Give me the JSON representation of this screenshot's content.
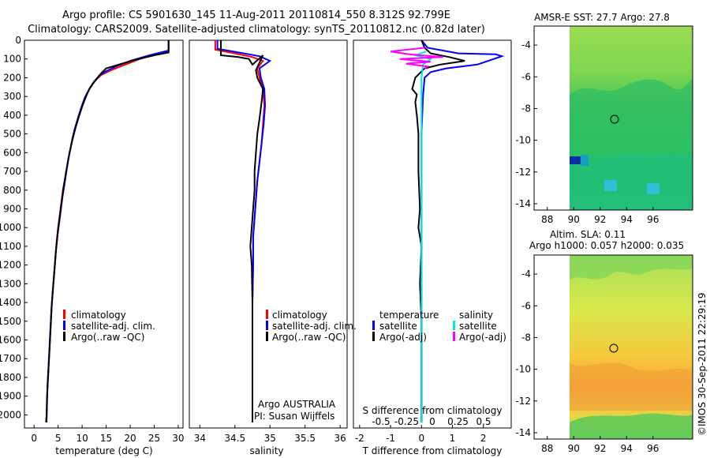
{
  "header": {
    "line1": "Argo profile: CS 5901630_145 11-Aug-2011 20110814_550 8.312S 92.799E",
    "line2": "Climatology: CARS2009. Satellite-adjusted climatology: synTS_20110812.nc (0.82d later)"
  },
  "footer": {
    "stamp": "©IMOS 30-Sep-2011 22:29:19"
  },
  "colors": {
    "climatology": "#ff0000",
    "satellite": "#0000ff",
    "argo": "#000000",
    "salinity_satellite": "#00e5e5",
    "salinity_argo": "#ff00ff"
  },
  "chart_data": [
    {
      "type": "line",
      "name": "temperature-profile",
      "xlabel": "temperature (deg C)",
      "ylabel": "",
      "xlim": [
        -2,
        31
      ],
      "ylim": [
        0,
        2070
      ],
      "y_reversed": true,
      "xticks": [
        0,
        5,
        10,
        15,
        20,
        25,
        30
      ],
      "yticks": [
        0,
        100,
        200,
        300,
        400,
        500,
        600,
        700,
        800,
        900,
        1000,
        1100,
        1200,
        1300,
        1400,
        1500,
        1600,
        1700,
        1800,
        1900,
        2000
      ],
      "legend": [
        "climatology",
        "satellite-adj. clim.",
        "Argo(..raw -QC)"
      ],
      "series": [
        {
          "name": "climatology",
          "color": "red",
          "points": [
            [
              28,
              0
            ],
            [
              28,
              60
            ],
            [
              25,
              75
            ],
            [
              22,
              100
            ],
            [
              19,
              130
            ],
            [
              16,
              160
            ],
            [
              14,
              185
            ],
            [
              12.5,
              220
            ],
            [
              11.5,
              260
            ],
            [
              10.7,
              300
            ],
            [
              10,
              350
            ],
            [
              9.3,
              400
            ],
            [
              8.6,
              460
            ],
            [
              8,
              520
            ],
            [
              7.4,
              600
            ],
            [
              6.7,
              700
            ],
            [
              6,
              800
            ],
            [
              5.5,
              900
            ],
            [
              5,
              1000
            ],
            [
              4.6,
              1100
            ],
            [
              4.3,
              1200
            ],
            [
              4,
              1300
            ],
            [
              3.7,
              1400
            ],
            [
              3.5,
              1500
            ],
            [
              3.3,
              1600
            ],
            [
              3.1,
              1700
            ],
            [
              2.9,
              1800
            ],
            [
              2.7,
              1900
            ],
            [
              2.6,
              2000
            ],
            [
              2.5,
              2040
            ]
          ]
        },
        {
          "name": "satellite-adj. clim.",
          "color": "blue",
          "points": [
            [
              28,
              0
            ],
            [
              28,
              55
            ],
            [
              24,
              80
            ],
            [
              20,
              110
            ],
            [
              17,
              140
            ],
            [
              15,
              165
            ],
            [
              13.5,
              190
            ],
            [
              12.3,
              230
            ],
            [
              11.3,
              270
            ],
            [
              10.5,
              310
            ],
            [
              9.8,
              360
            ],
            [
              9.1,
              420
            ],
            [
              8.4,
              480
            ],
            [
              7.8,
              550
            ],
            [
              7.1,
              640
            ],
            [
              6.5,
              740
            ],
            [
              5.9,
              840
            ],
            [
              5.4,
              940
            ],
            [
              4.9,
              1040
            ],
            [
              4.5,
              1140
            ],
            [
              4.2,
              1240
            ],
            [
              3.9,
              1340
            ],
            [
              3.6,
              1440
            ],
            [
              3.4,
              1540
            ],
            [
              3.2,
              1640
            ],
            [
              3,
              1740
            ],
            [
              2.8,
              1840
            ],
            [
              2.7,
              1940
            ],
            [
              2.6,
              2040
            ]
          ]
        },
        {
          "name": "Argo(..raw -QC)",
          "color": "black",
          "points": [
            [
              28,
              0
            ],
            [
              28,
              65
            ],
            [
              25,
              80
            ],
            [
              21,
              105
            ],
            [
              17,
              135
            ],
            [
              15,
              150
            ],
            [
              14,
              175
            ],
            [
              12.7,
              215
            ],
            [
              11.6,
              255
            ],
            [
              10.8,
              300
            ],
            [
              10,
              355
            ],
            [
              9.3,
              410
            ],
            [
              8.6,
              470
            ],
            [
              8,
              530
            ],
            [
              7.3,
              610
            ],
            [
              6.6,
              710
            ],
            [
              6,
              810
            ],
            [
              5.5,
              910
            ],
            [
              5,
              1010
            ],
            [
              4.6,
              1110
            ],
            [
              4.3,
              1210
            ],
            [
              4,
              1310
            ],
            [
              3.7,
              1410
            ],
            [
              3.5,
              1510
            ],
            [
              3.3,
              1610
            ],
            [
              3.1,
              1710
            ],
            [
              2.9,
              1810
            ],
            [
              2.7,
              1910
            ],
            [
              2.6,
              2010
            ],
            [
              2.5,
              2040
            ]
          ]
        }
      ]
    },
    {
      "type": "line",
      "name": "salinity-profile",
      "xlabel": "salinity",
      "xlim": [
        33.85,
        36.1
      ],
      "ylim": [
        0,
        2070
      ],
      "y_reversed": true,
      "xticks": [
        34,
        34.5,
        35,
        35.5,
        36
      ],
      "legend": [
        "climatology",
        "satellite-adj. clim.",
        "Argo(..raw -QC)"
      ],
      "annotation_lines": [
        "Argo AUSTRALIA",
        "PI: Susan Wijffels"
      ],
      "series": [
        {
          "name": "climatology",
          "color": "red",
          "points": [
            [
              34.22,
              0
            ],
            [
              34.22,
              50
            ],
            [
              34.5,
              70
            ],
            [
              34.75,
              90
            ],
            [
              34.9,
              110
            ],
            [
              34.82,
              150
            ],
            [
              34.85,
              200
            ],
            [
              34.9,
              260
            ],
            [
              34.92,
              350
            ],
            [
              34.9,
              450
            ],
            [
              34.88,
              550
            ],
            [
              34.85,
              650
            ],
            [
              34.82,
              750
            ],
            [
              34.8,
              850
            ],
            [
              34.78,
              950
            ],
            [
              34.76,
              1050
            ],
            [
              34.76,
              1200
            ],
            [
              34.75,
              1400
            ],
            [
              34.75,
              1600
            ],
            [
              34.75,
              1800
            ],
            [
              34.75,
              2040
            ]
          ]
        },
        {
          "name": "satellite-adj. clim.",
          "color": "blue",
          "points": [
            [
              34.25,
              0
            ],
            [
              34.25,
              45
            ],
            [
              34.55,
              65
            ],
            [
              34.85,
              85
            ],
            [
              35.0,
              110
            ],
            [
              34.85,
              150
            ],
            [
              34.87,
              200
            ],
            [
              34.92,
              260
            ],
            [
              34.93,
              350
            ],
            [
              34.91,
              450
            ],
            [
              34.88,
              550
            ],
            [
              34.85,
              650
            ],
            [
              34.82,
              750
            ],
            [
              34.8,
              850
            ],
            [
              34.78,
              950
            ],
            [
              34.76,
              1050
            ],
            [
              34.76,
              1200
            ],
            [
              34.75,
              1400
            ],
            [
              34.75,
              1600
            ],
            [
              34.75,
              1800
            ],
            [
              34.75,
              2040
            ]
          ]
        },
        {
          "name": "Argo(..raw -QC)",
          "color": "black",
          "points": [
            [
              34.3,
              0
            ],
            [
              34.3,
              80
            ],
            [
              34.55,
              90
            ],
            [
              34.7,
              100
            ],
            [
              34.75,
              130
            ],
            [
              34.9,
              80
            ],
            [
              34.8,
              160
            ],
            [
              34.82,
              200
            ],
            [
              34.9,
              260
            ],
            [
              34.88,
              330
            ],
            [
              34.85,
              420
            ],
            [
              34.82,
              500
            ],
            [
              34.8,
              600
            ],
            [
              34.78,
              700
            ],
            [
              34.78,
              800
            ],
            [
              34.76,
              900
            ],
            [
              34.74,
              1000
            ],
            [
              34.72,
              1100
            ],
            [
              34.74,
              1200
            ],
            [
              34.75,
              1400
            ],
            [
              34.75,
              1600
            ],
            [
              34.75,
              1800
            ],
            [
              34.75,
              2040
            ]
          ]
        }
      ]
    },
    {
      "type": "line",
      "name": "difference-profile",
      "xlabel": "T difference from climatology",
      "xlabel_top": "S difference from climatology",
      "xlim": [
        -2.2,
        2.9
      ],
      "ylim": [
        0,
        2070
      ],
      "y_reversed": true,
      "xticks": [
        -2,
        -1,
        0,
        1,
        2
      ],
      "xticks_top": [
        -0.5,
        -0.25,
        0,
        0.25,
        0.5
      ],
      "legend_headers": [
        "temperature",
        "salinity"
      ],
      "legend": [
        "satellite",
        "Argo(-adj)",
        "satellite",
        "Argo(-adj)"
      ],
      "series": [
        {
          "name": "satellite",
          "color": "blue",
          "points": [
            [
              0,
              0
            ],
            [
              0.2,
              40
            ],
            [
              1.2,
              70
            ],
            [
              2.4,
              75
            ],
            [
              2.6,
              85
            ],
            [
              1.8,
              130
            ],
            [
              0.8,
              150
            ],
            [
              0.3,
              170
            ],
            [
              0.1,
              200
            ],
            [
              0.05,
              300
            ],
            [
              0.0,
              500
            ],
            [
              0.0,
              800
            ],
            [
              0.0,
              1200
            ],
            [
              0.0,
              1600
            ],
            [
              0.0,
              2040
            ]
          ]
        },
        {
          "name": "Argo(-adj)",
          "color": "black",
          "points": [
            [
              0,
              0
            ],
            [
              0.1,
              40
            ],
            [
              0.3,
              70
            ],
            [
              0.9,
              90
            ],
            [
              1.4,
              110
            ],
            [
              0.6,
              130
            ],
            [
              0.1,
              150
            ],
            [
              -0.2,
              200
            ],
            [
              -0.3,
              260
            ],
            [
              -0.15,
              290
            ],
            [
              -0.2,
              330
            ],
            [
              -0.15,
              400
            ],
            [
              -0.1,
              500
            ],
            [
              -0.1,
              700
            ],
            [
              -0.05,
              900
            ],
            [
              -0.1,
              1000
            ],
            [
              0.0,
              1100
            ],
            [
              -0.05,
              1300
            ],
            [
              0.0,
              1500
            ],
            [
              0.0,
              1800
            ],
            [
              0.0,
              2040
            ]
          ]
        },
        {
          "name": "satellite",
          "color": "#00e5e5",
          "points": [
            [
              0.15,
              60
            ],
            [
              -0.2,
              80
            ],
            [
              0.3,
              100
            ],
            [
              0.05,
              130
            ],
            [
              0.0,
              200
            ],
            [
              0.0,
              400
            ],
            [
              0.0,
              700
            ],
            [
              0.0,
              1000
            ],
            [
              0.0,
              1400
            ],
            [
              0.0,
              1800
            ],
            [
              0.0,
              2040
            ]
          ]
        },
        {
          "name": "Argo(-adj)",
          "color": "magenta",
          "points": [
            [
              0.1,
              40
            ],
            [
              -1.0,
              60
            ],
            [
              -0.4,
              75
            ],
            [
              0.7,
              90
            ],
            [
              -0.7,
              100
            ],
            [
              0.3,
              115
            ],
            [
              -0.5,
              125
            ],
            [
              0.2,
              140
            ],
            [
              0.1,
              150
            ]
          ]
        }
      ]
    },
    {
      "type": "heatmap",
      "name": "amsre-sst-map",
      "title": "AMSR-E SST: 27.7  Argo: 27.8",
      "xlim": [
        87,
        99
      ],
      "ylim": [
        -14.4,
        -2.8
      ],
      "xticks": [
        88,
        90,
        92,
        94,
        96
      ],
      "yticks": [
        -4,
        -6,
        -8,
        -10,
        -12,
        -14
      ],
      "argo_position": [
        92.8,
        -8.3
      ]
    },
    {
      "type": "heatmap",
      "name": "altimetry-sla-map",
      "title_lines": [
        "Altim. SLA: 0.11",
        "Argo h1000: 0.057 h2000: 0.035"
      ],
      "xlim": [
        87,
        99
      ],
      "ylim": [
        -14.4,
        -2.8
      ],
      "xticks": [
        88,
        90,
        92,
        94,
        96
      ],
      "yticks": [
        -4,
        -6,
        -8,
        -10,
        -12,
        -14
      ],
      "argo_position": [
        92.8,
        -8.4
      ]
    }
  ]
}
